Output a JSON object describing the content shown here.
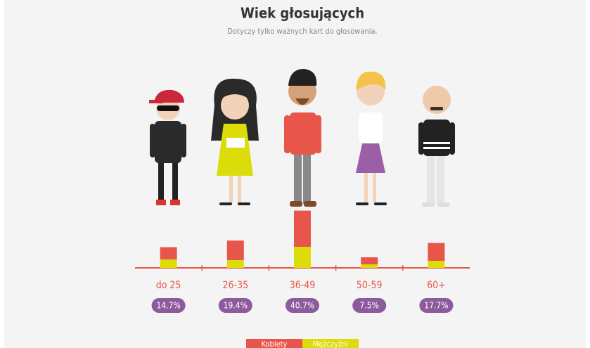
{
  "chart_data": {
    "type": "stacked-bar",
    "title": "Wiek głosujących",
    "subtitle": "Dotyczy tylko ważnych kart do głosowania.",
    "categories": [
      "do 25",
      "26-35",
      "36-49",
      "50-59",
      "60+"
    ],
    "series": [
      {
        "name": "Mężczyźni",
        "color": "#dcdc0a",
        "values": [
          6.0,
          5.5,
          15.0,
          2.5,
          5.0
        ]
      },
      {
        "name": "Kobiety",
        "color": "#e8554a",
        "values": [
          8.7,
          13.9,
          25.7,
          5.0,
          12.7
        ]
      }
    ],
    "totals": {
      "values": [
        14.7,
        19.4,
        40.7,
        7.5,
        17.7
      ],
      "value_labels": [
        "14.7%",
        "19.4%",
        "40.7%",
        "7.5%",
        "17.7%"
      ]
    }
  }
}
